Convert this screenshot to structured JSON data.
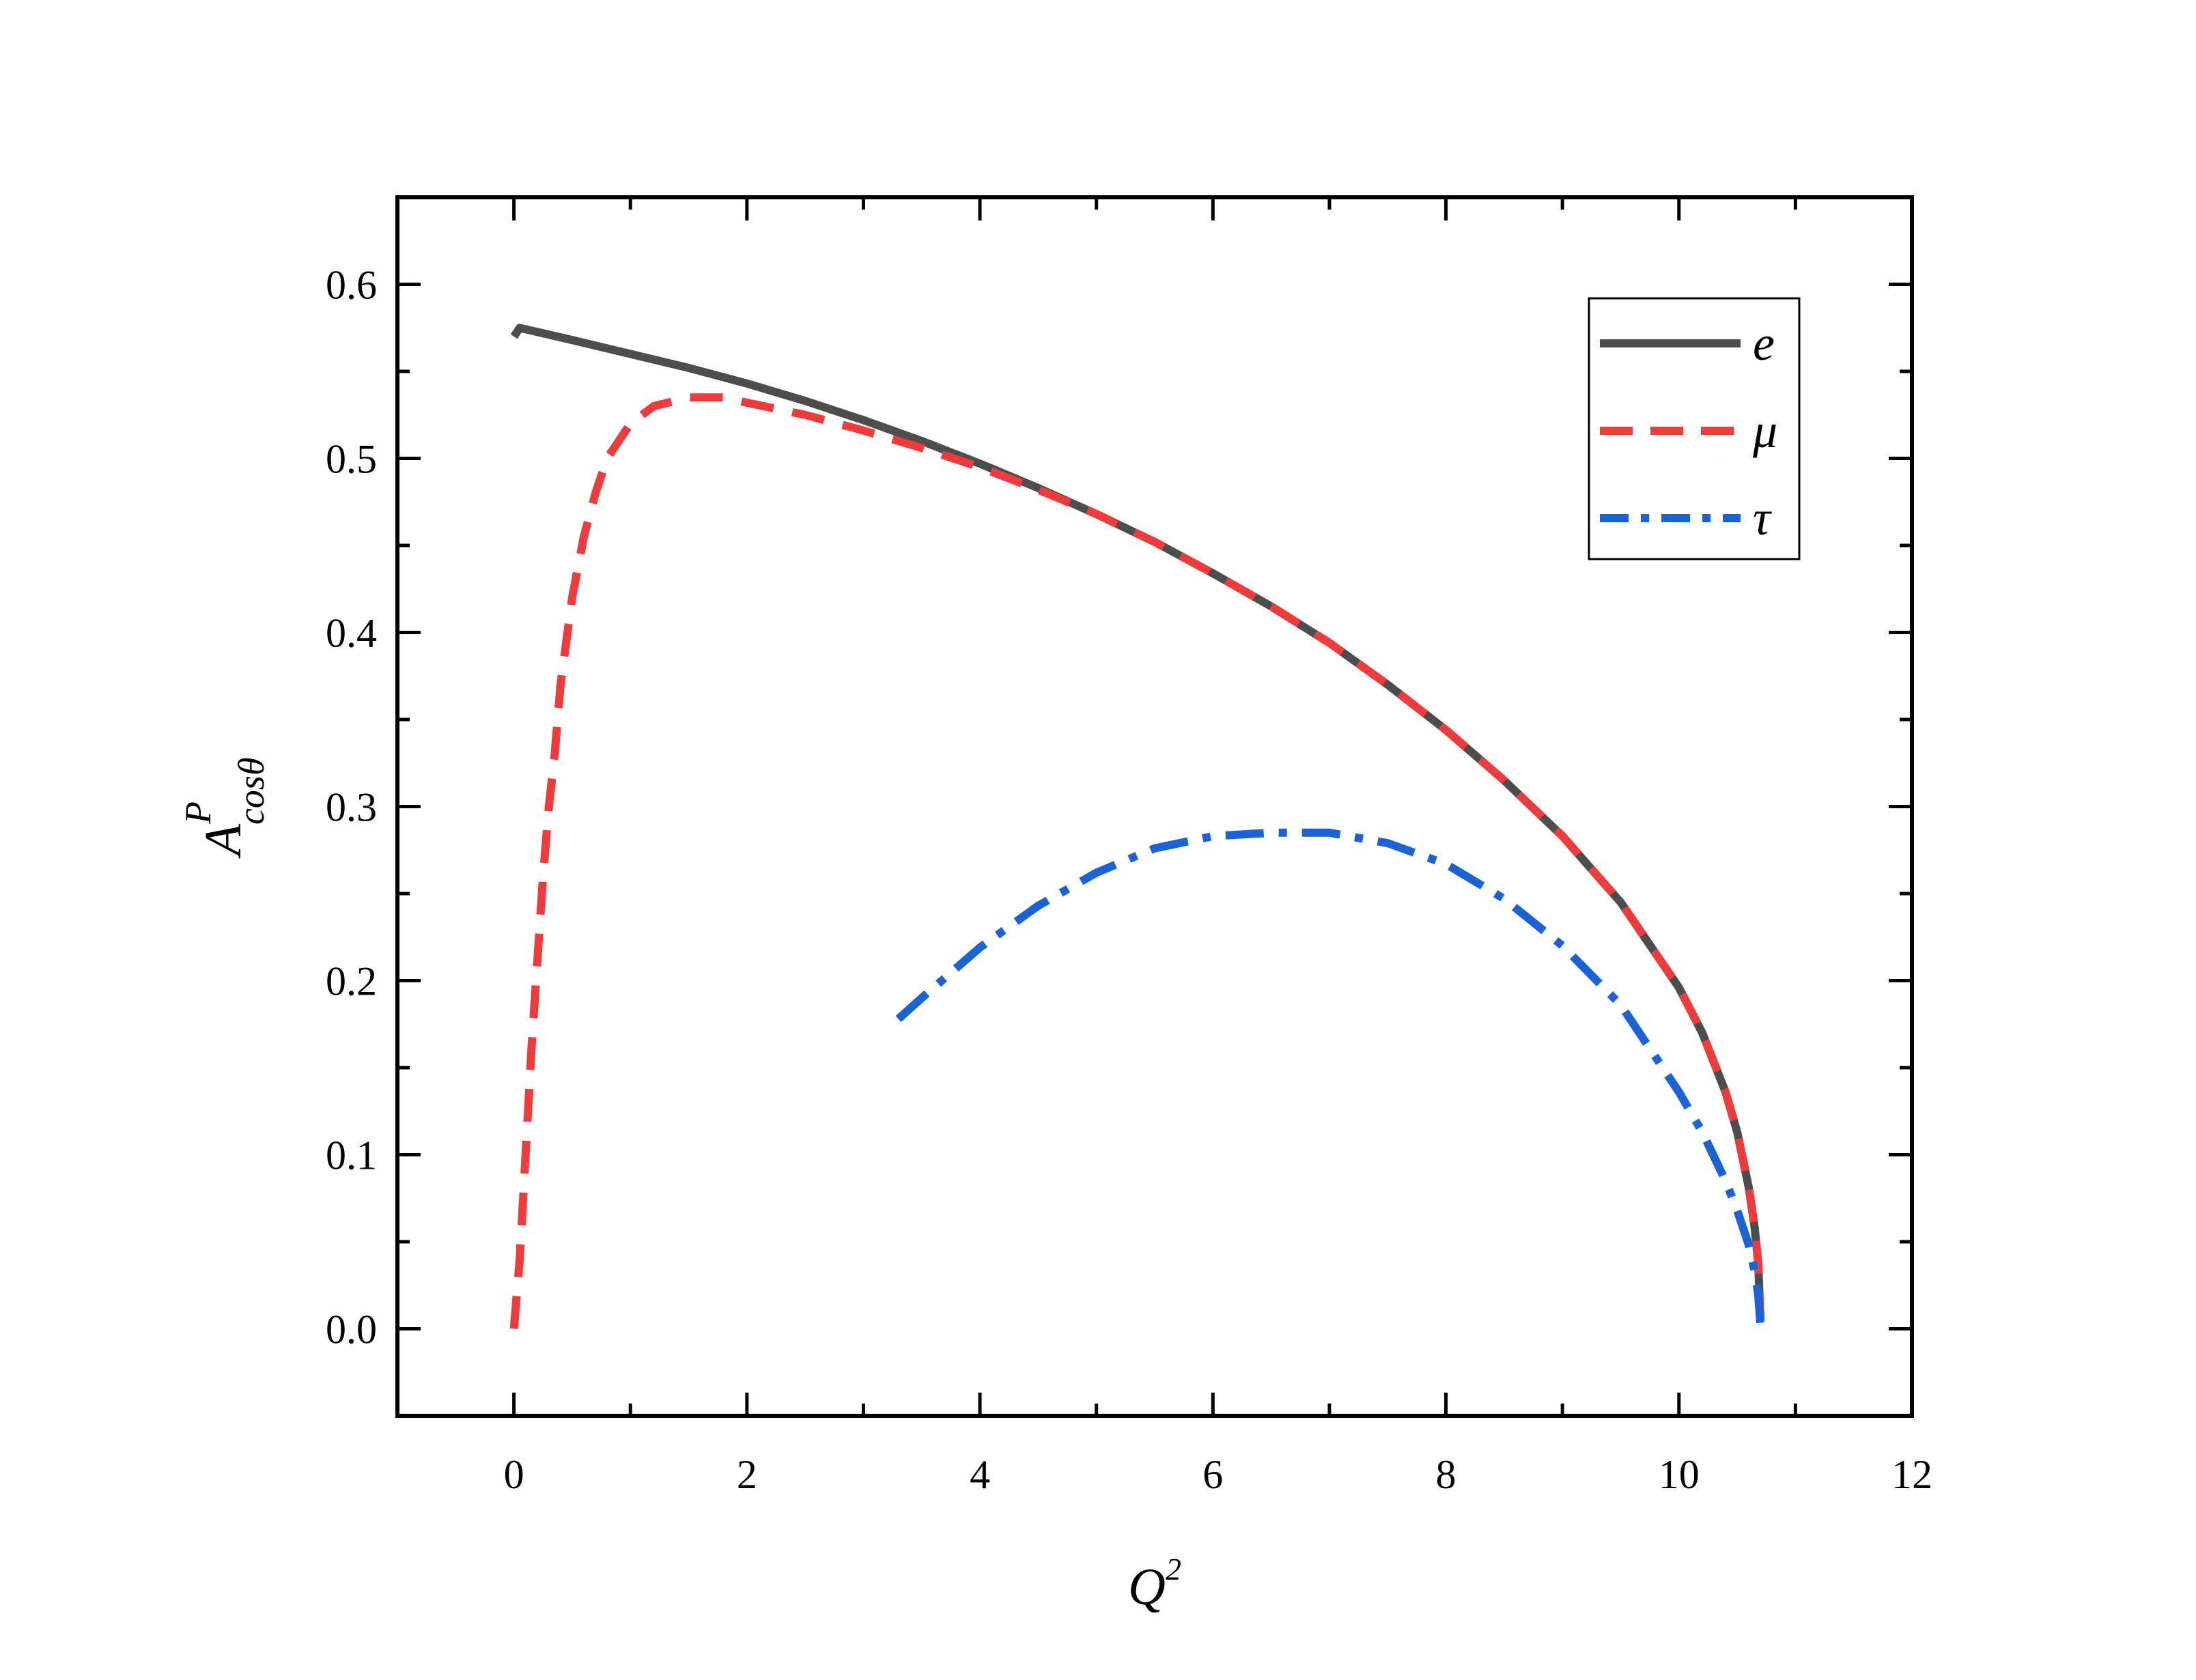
{
  "chart_data": {
    "type": "line",
    "xlabel": "Q",
    "xlabel_sup": "2",
    "ylabel": "A",
    "ylabel_sup": "P",
    "ylabel_sub": "cosθ",
    "xlim": [
      -1,
      12
    ],
    "ylim": [
      -0.05,
      0.65
    ],
    "x_ticks": [
      0,
      2,
      4,
      6,
      8,
      10,
      12
    ],
    "x_tick_labels": [
      "0",
      "2",
      "4",
      "6",
      "8",
      "10",
      "12"
    ],
    "x_minor_ticks": [
      -1,
      1,
      3,
      5,
      7,
      9,
      11
    ],
    "y_ticks": [
      0.0,
      0.1,
      0.2,
      0.3,
      0.4,
      0.5,
      0.6
    ],
    "y_tick_labels": [
      "0.0",
      "0.1",
      "0.2",
      "0.3",
      "0.4",
      "0.5",
      "0.6"
    ],
    "y_minor_ticks": [
      -0.05,
      0.05,
      0.15,
      0.25,
      0.35,
      0.45,
      0.55
    ],
    "grid": false,
    "legend_position": "top-right",
    "series": [
      {
        "name": "e",
        "color": "#4d4d4d",
        "style": "solid",
        "x": [
          0.0,
          0.05,
          0.5,
          1.0,
          1.5,
          2.0,
          2.5,
          3.0,
          3.5,
          4.0,
          4.5,
          5.0,
          5.5,
          6.0,
          6.5,
          7.0,
          7.5,
          8.0,
          8.5,
          9.0,
          9.5,
          10.0,
          10.2,
          10.4,
          10.5,
          10.6,
          10.65,
          10.68,
          10.7
        ],
        "y": [
          0.57,
          0.575,
          0.568,
          0.56,
          0.552,
          0.543,
          0.533,
          0.522,
          0.51,
          0.497,
          0.483,
          0.468,
          0.452,
          0.434,
          0.415,
          0.394,
          0.37,
          0.344,
          0.315,
          0.283,
          0.245,
          0.196,
          0.17,
          0.136,
          0.113,
          0.081,
          0.058,
          0.038,
          0.005
        ]
      },
      {
        "name": "μ",
        "color": "#ee3b3b",
        "style": "dashed",
        "x": [
          0.0,
          0.05,
          0.1,
          0.15,
          0.2,
          0.25,
          0.3,
          0.35,
          0.4,
          0.5,
          0.6,
          0.7,
          0.8,
          1.0,
          1.2,
          1.5,
          1.8,
          2.0,
          2.5,
          3.0,
          3.5,
          4.0,
          4.5,
          5.0,
          5.5,
          6.0,
          6.5,
          7.0,
          7.5,
          8.0,
          8.5,
          9.0,
          9.5,
          10.0,
          10.2,
          10.4,
          10.5,
          10.6,
          10.65,
          10.68,
          10.7
        ],
        "y": [
          0.0,
          0.04,
          0.1,
          0.16,
          0.21,
          0.26,
          0.3,
          0.33,
          0.37,
          0.42,
          0.455,
          0.48,
          0.5,
          0.52,
          0.53,
          0.535,
          0.535,
          0.532,
          0.525,
          0.516,
          0.506,
          0.495,
          0.482,
          0.468,
          0.452,
          0.434,
          0.415,
          0.394,
          0.37,
          0.344,
          0.315,
          0.283,
          0.245,
          0.196,
          0.17,
          0.136,
          0.113,
          0.081,
          0.058,
          0.038,
          0.005
        ]
      },
      {
        "name": "τ",
        "color": "#1a63d6",
        "style": "dashdot",
        "x": [
          3.3,
          3.5,
          4.0,
          4.5,
          5.0,
          5.5,
          6.0,
          6.5,
          7.0,
          7.5,
          8.0,
          8.5,
          9.0,
          9.5,
          10.0,
          10.2,
          10.4,
          10.5,
          10.6,
          10.65,
          10.68,
          10.7
        ],
        "y": [
          0.178,
          0.19,
          0.219,
          0.243,
          0.262,
          0.276,
          0.283,
          0.285,
          0.285,
          0.279,
          0.267,
          0.247,
          0.22,
          0.186,
          0.136,
          0.113,
          0.085,
          0.068,
          0.048,
          0.033,
          0.02,
          0.002
        ]
      }
    ]
  }
}
